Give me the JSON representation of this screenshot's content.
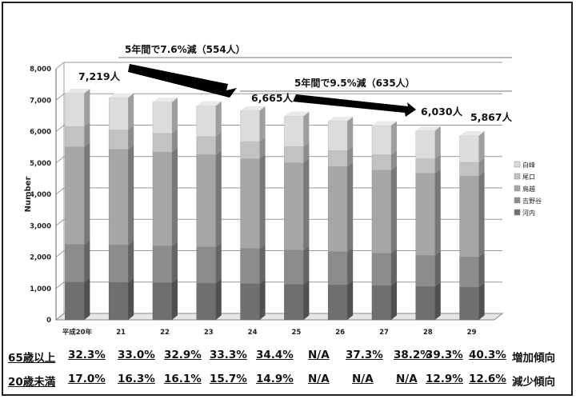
{
  "chart_data": {
    "type": "bar",
    "stacked": true,
    "three_d": true,
    "categories": [
      "平成20年",
      "21",
      "22",
      "23",
      "24",
      "25",
      "26",
      "27",
      "28",
      "29"
    ],
    "ylabel": "Number",
    "ylim": [
      0,
      8000
    ],
    "yticks": [
      "0",
      "1,000",
      "2,000",
      "3,000",
      "4,000",
      "5,000",
      "6,000",
      "7,000",
      "8,000"
    ],
    "series": [
      {
        "name": "河内",
        "color": "#6f6f6f",
        "values": [
          1200,
          1190,
          1180,
          1170,
          1150,
          1130,
          1110,
          1090,
          1060,
          1040
        ]
      },
      {
        "name": "吉野谷",
        "color": "#8c8c8c",
        "values": [
          1200,
          1190,
          1170,
          1150,
          1120,
          1090,
          1060,
          1030,
          990,
          960
        ]
      },
      {
        "name": "鳥越",
        "color": "#a6a6a6",
        "values": [
          3110,
          3050,
          2990,
          2940,
          2860,
          2780,
          2710,
          2650,
          2620,
          2580
        ]
      },
      {
        "name": "尾口",
        "color": "#c2c2c2",
        "values": [
          650,
          620,
          600,
          580,
          550,
          520,
          510,
          490,
          460,
          440
        ]
      },
      {
        "name": "白峰",
        "color": "#dcdcdc",
        "values": [
          1059,
          1030,
          1000,
          980,
          985,
          970,
          940,
          930,
          900,
          847
        ]
      }
    ],
    "totals": [
      "7,219人",
      "6,665人",
      "6,030人",
      "5,867人"
    ],
    "annotations": [
      "5年間で7.6%減（554人）",
      "5年間で9.5%減（635人）"
    ]
  },
  "table": {
    "rows": [
      {
        "label": "65歳以上",
        "values": [
          "32.3%",
          "33.0%",
          "32.9%",
          "33.3%",
          "34.4%",
          "N/A",
          "37.3%",
          "38.2%",
          "39.3%",
          "40.3%"
        ],
        "trend": "増加傾向"
      },
      {
        "label": "20歳未満",
        "values": [
          "17.0%",
          "16.3%",
          "16.1%",
          "15.7%",
          "14.9%",
          "N/A",
          "N/A",
          "N/A",
          "12.9%",
          "12.6%"
        ],
        "trend": "減少傾向"
      }
    ]
  }
}
